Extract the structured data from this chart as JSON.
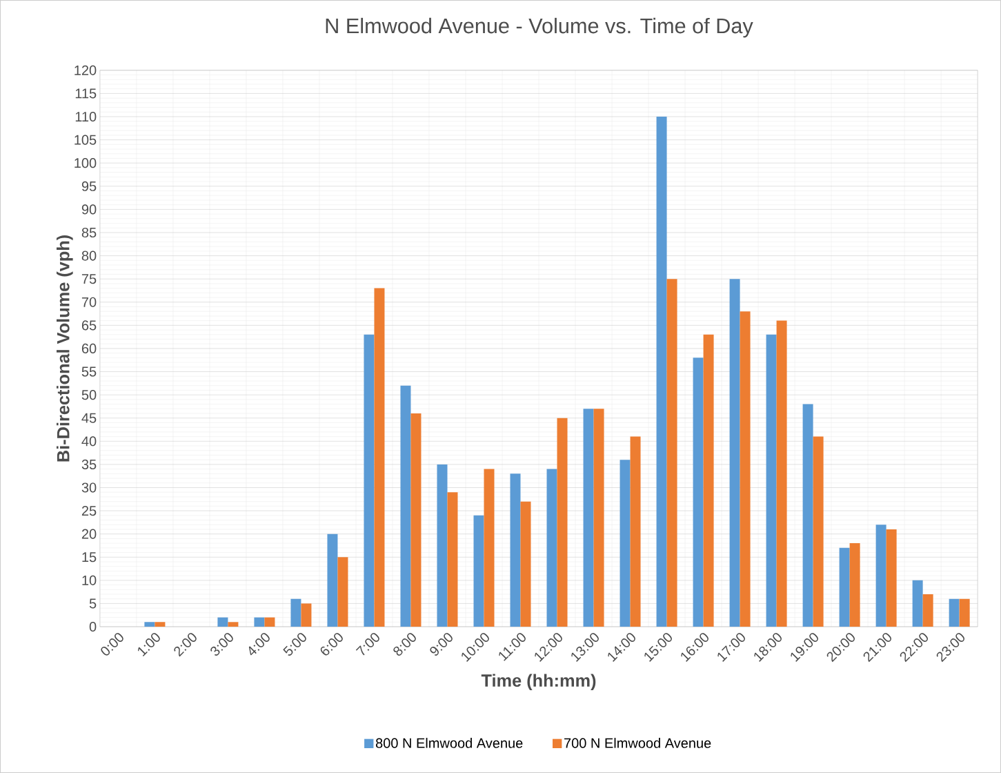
{
  "chart_data": {
    "type": "bar",
    "title": "N Elmwood Avenue - Volume vs. Time of Day",
    "xlabel": "Time (hh:mm)",
    "ylabel": "Bi-Directional Volume (vph)",
    "categories": [
      "0:00",
      "1:00",
      "2:00",
      "3:00",
      "4:00",
      "5:00",
      "6:00",
      "7:00",
      "8:00",
      "9:00",
      "10:00",
      "11:00",
      "12:00",
      "13:00",
      "14:00",
      "15:00",
      "16:00",
      "17:00",
      "18:00",
      "19:00",
      "20:00",
      "21:00",
      "22:00",
      "23:00"
    ],
    "series": [
      {
        "name": "800 N Elmwood Avenue",
        "color": "#5b9bd5",
        "values": [
          0,
          1,
          0,
          2,
          2,
          6,
          20,
          63,
          52,
          35,
          24,
          33,
          34,
          47,
          36,
          110,
          58,
          75,
          63,
          48,
          17,
          22,
          10,
          6
        ]
      },
      {
        "name": "700 N Elmwood Avenue",
        "color": "#ed7d31",
        "values": [
          0,
          1,
          0,
          1,
          2,
          5,
          15,
          73,
          46,
          29,
          34,
          27,
          45,
          47,
          41,
          75,
          63,
          68,
          66,
          41,
          18,
          21,
          7,
          6
        ]
      }
    ],
    "ylim": [
      0,
      120
    ],
    "yticks": [
      0,
      5,
      10,
      15,
      20,
      25,
      30,
      35,
      40,
      45,
      50,
      55,
      60,
      65,
      70,
      75,
      80,
      85,
      90,
      95,
      100,
      105,
      110,
      115,
      120
    ],
    "grid": true,
    "legend": "bottom"
  }
}
